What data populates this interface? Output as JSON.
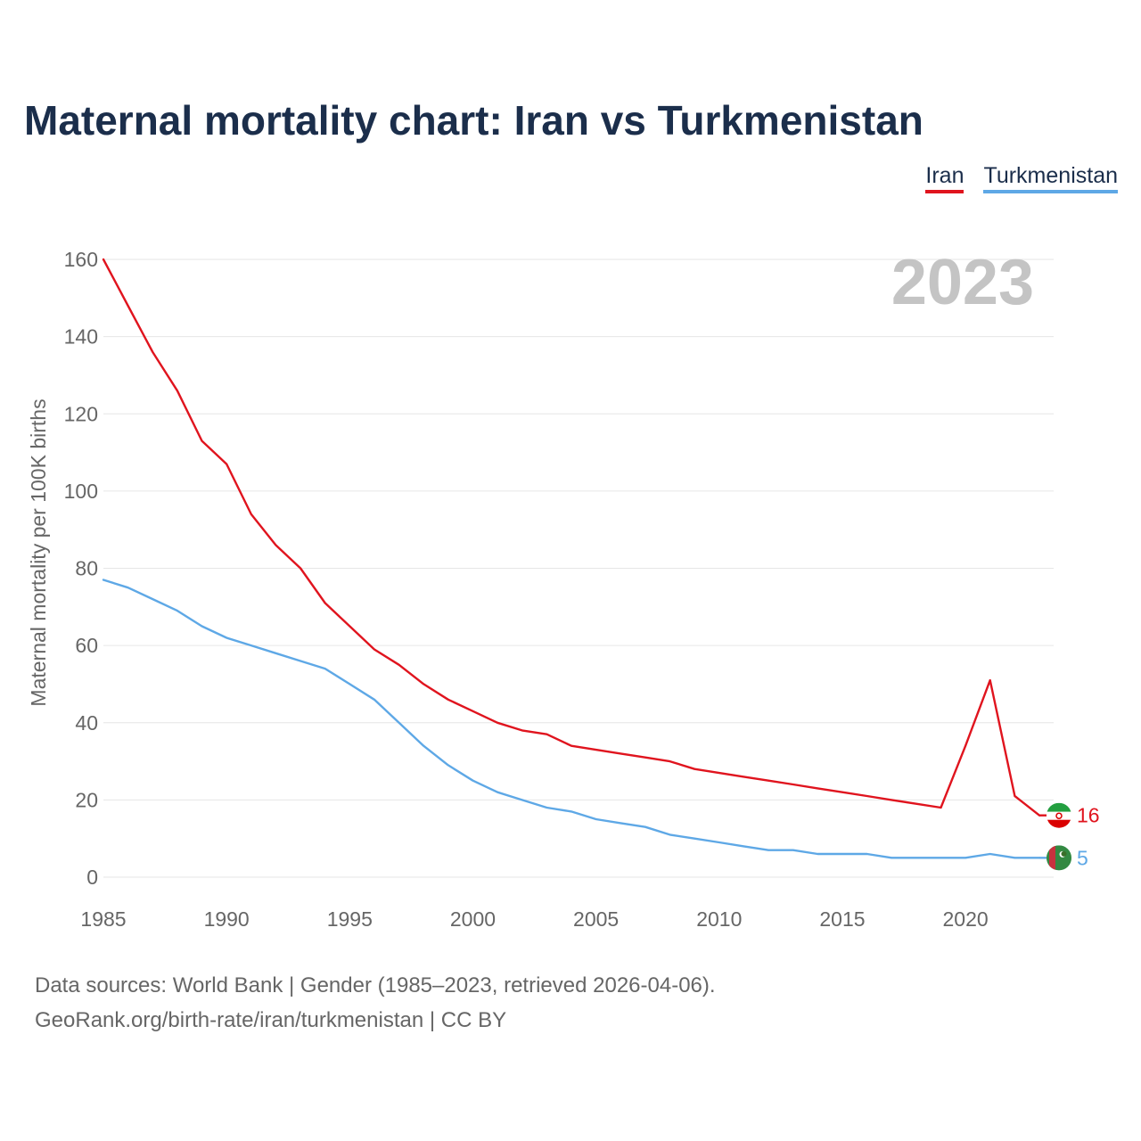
{
  "title": "Maternal mortality chart: Iran vs Turkmenistan",
  "legend": {
    "iran": "Iran",
    "turkmenistan": "Turkmenistan"
  },
  "year_label": "2023",
  "footer": {
    "line1": "Data sources: World Bank | Gender (1985–2023, retrieved 2026-04-06).",
    "line2": "GeoRank.org/birth-rate/iran/turkmenistan | CC BY"
  },
  "colors": {
    "iran": "#e0141e",
    "turkmenistan": "#5ea8e6",
    "grid": "#e6e6e6",
    "axis_text": "#666666",
    "year": "#c4c4c4"
  },
  "chart_data": {
    "type": "line",
    "title": "Maternal mortality chart: Iran vs Turkmenistan",
    "xlabel": "",
    "ylabel": "Maternal mortality per 100K births",
    "xlim": [
      1985,
      2023
    ],
    "ylim": [
      0,
      160
    ],
    "x_ticks": [
      1985,
      1990,
      1995,
      2000,
      2005,
      2010,
      2015,
      2020
    ],
    "y_ticks": [
      0,
      20,
      40,
      60,
      80,
      100,
      120,
      140,
      160
    ],
    "grid": true,
    "legend_position": "top-right",
    "x": [
      1985,
      1986,
      1987,
      1988,
      1989,
      1990,
      1991,
      1992,
      1993,
      1994,
      1995,
      1996,
      1997,
      1998,
      1999,
      2000,
      2001,
      2002,
      2003,
      2004,
      2005,
      2006,
      2007,
      2008,
      2009,
      2010,
      2011,
      2012,
      2013,
      2014,
      2015,
      2016,
      2017,
      2018,
      2019,
      2020,
      2021,
      2022,
      2023
    ],
    "series": [
      {
        "name": "Iran",
        "color": "#e0141e",
        "end_label": "16",
        "flag": "iran-flag-icon",
        "values": [
          160,
          148,
          136,
          126,
          113,
          107,
          94,
          86,
          80,
          71,
          65,
          59,
          55,
          50,
          46,
          43,
          40,
          38,
          37,
          34,
          33,
          32,
          31,
          30,
          28,
          27,
          26,
          25,
          24,
          23,
          22,
          21,
          20,
          19,
          18,
          34,
          51,
          21,
          16
        ]
      },
      {
        "name": "Turkmenistan",
        "color": "#5ea8e6",
        "end_label": "5",
        "flag": "turkmenistan-flag-icon",
        "values": [
          77,
          75,
          72,
          69,
          65,
          62,
          60,
          58,
          56,
          54,
          50,
          46,
          40,
          34,
          29,
          25,
          22,
          20,
          18,
          17,
          15,
          14,
          13,
          11,
          10,
          9,
          8,
          7,
          7,
          6,
          6,
          6,
          5,
          5,
          5,
          5,
          6,
          5,
          5
        ]
      }
    ]
  }
}
